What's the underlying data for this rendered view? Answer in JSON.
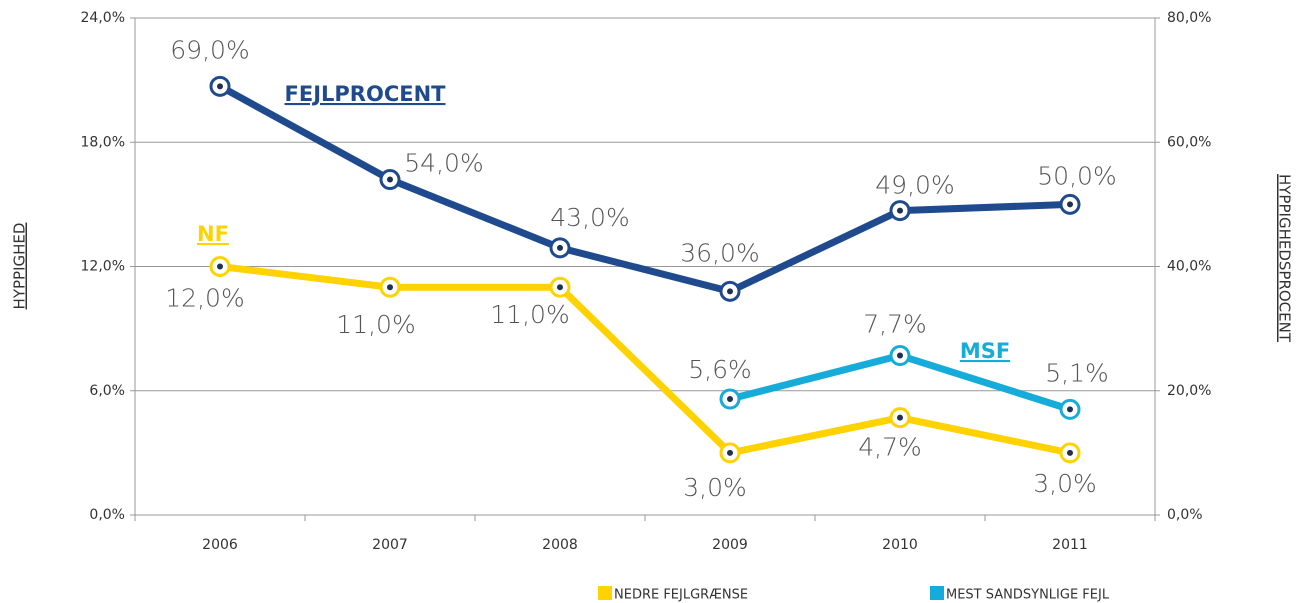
{
  "chart_data": {
    "type": "line",
    "categories": [
      "2006",
      "2007",
      "2008",
      "2009",
      "2010",
      "2011"
    ],
    "ylabel": "HYPPIGHED",
    "y2label": "HYPPIGHEDSPROCENT",
    "ylim": [
      0,
      24
    ],
    "yticks": [
      {
        "value": 0,
        "label": "0,0%"
      },
      {
        "value": 6,
        "label": "6,0%"
      },
      {
        "value": 12,
        "label": "12,0%"
      },
      {
        "value": 18,
        "label": "18,0%"
      },
      {
        "value": 24,
        "label": "24,0%"
      }
    ],
    "y2lim": [
      0,
      80
    ],
    "y2ticks": [
      {
        "value": 0,
        "label": "0,0%"
      },
      {
        "value": 20,
        "label": "20,0%"
      },
      {
        "value": 40,
        "label": "40,0%"
      },
      {
        "value": 60,
        "label": "60,0%"
      },
      {
        "value": 80,
        "label": "80,0%"
      }
    ],
    "grid": true,
    "series": [
      {
        "label": "FEJLPROCENT",
        "color": "#1f4b8e",
        "axis": "y2",
        "values": [
          69,
          54,
          43,
          36,
          49,
          50
        ],
        "value_labels": [
          "69,0%",
          "54,0%",
          "43,0%",
          "36,0%",
          "49,0%",
          "50,0%"
        ]
      },
      {
        "name": "NEDRE FEJLGRÆNSE",
        "label": "NF",
        "color": "#ffd200",
        "values": [
          12,
          11,
          11,
          3,
          4.7,
          3
        ],
        "value_labels": [
          "12,0%",
          "11,0%",
          "11,0%",
          "3,0%",
          "4,7%",
          "3,0%"
        ]
      },
      {
        "name": "MEST SANDSYNLIGE FEJL",
        "label": "MSF",
        "color": "#16acd9",
        "values": [
          null,
          null,
          null,
          5.6,
          7.7,
          5.1
        ],
        "value_labels": [
          null,
          null,
          null,
          "5,6%",
          "7,7%",
          "5,1%"
        ]
      }
    ]
  }
}
